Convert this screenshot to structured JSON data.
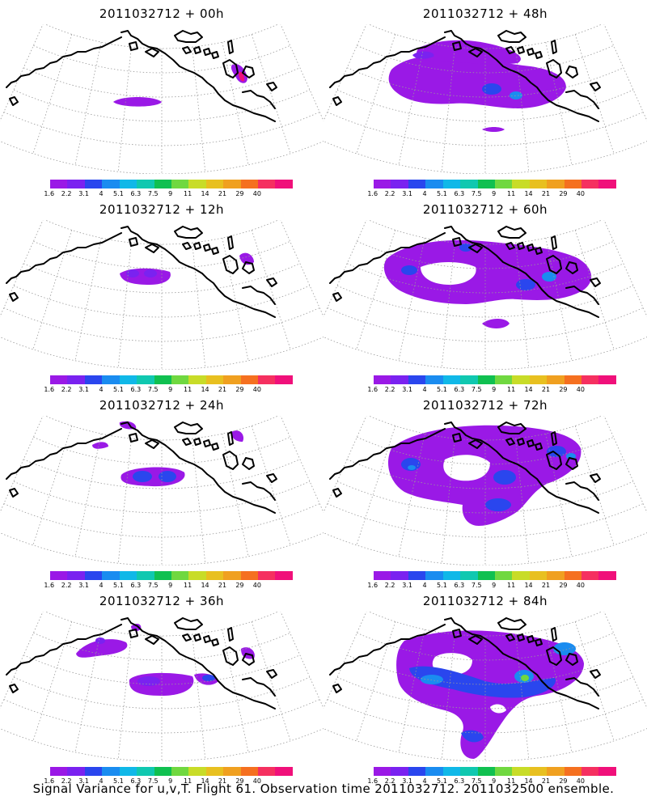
{
  "panels": [
    {
      "title": "2011032712 + 00h",
      "level": 0
    },
    {
      "title": "2011032712 + 48h",
      "level": 4
    },
    {
      "title": "2011032712 + 12h",
      "level": 1
    },
    {
      "title": "2011032712 + 60h",
      "level": 5
    },
    {
      "title": "2011032712 + 24h",
      "level": 2
    },
    {
      "title": "2011032712 + 72h",
      "level": 6
    },
    {
      "title": "2011032712 + 36h",
      "level": 3
    },
    {
      "title": "2011032712 + 84h",
      "level": 7
    }
  ],
  "colorbar": {
    "colors": [
      "#9a19e6",
      "#7a22f0",
      "#2a46ee",
      "#1a8cf0",
      "#10b8e8",
      "#10c8b0",
      "#10c050",
      "#70d840",
      "#c8dc28",
      "#e8c020",
      "#f0a020",
      "#f57020",
      "#f53060",
      "#f0107a"
    ],
    "labels": [
      "1.6",
      "2.2",
      "3.1",
      "4",
      "5.1",
      "6.3",
      "7.5",
      "9",
      "11",
      "14",
      "21",
      "29",
      "40"
    ]
  },
  "footer": "Signal Variance for u,v,T. Flight 61. Observation time 2011032712. 2011032500 ensemble."
}
